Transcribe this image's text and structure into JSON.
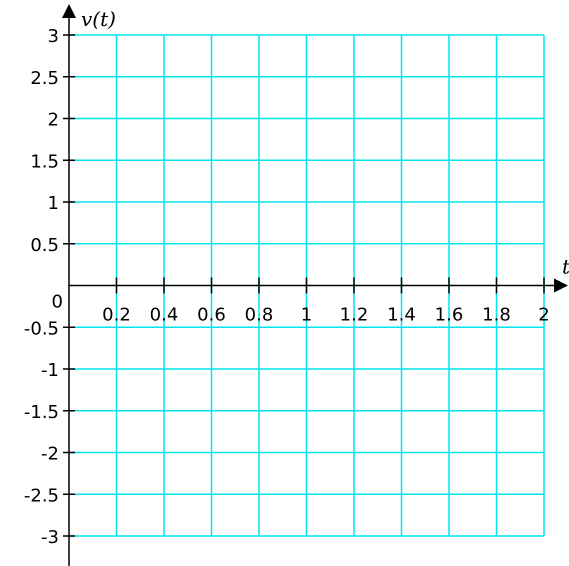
{
  "chart_data": {
    "type": "line",
    "title": "",
    "xlabel": "t",
    "ylabel": "v(t)",
    "xlim": [
      0,
      2
    ],
    "ylim": [
      -3,
      3
    ],
    "grid": true,
    "grid_color": "#00e5ee",
    "axis_color": "#000000",
    "origin_label": "0",
    "x_ticks": [
      {
        "value": 0.2,
        "label": "0.2"
      },
      {
        "value": 0.4,
        "label": "0.4"
      },
      {
        "value": 0.6,
        "label": "0.6"
      },
      {
        "value": 0.8,
        "label": "0.8"
      },
      {
        "value": 1.0,
        "label": "1"
      },
      {
        "value": 1.2,
        "label": "1.2"
      },
      {
        "value": 1.4,
        "label": "1.4"
      },
      {
        "value": 1.6,
        "label": "1.6"
      },
      {
        "value": 1.8,
        "label": "1.8"
      },
      {
        "value": 2.0,
        "label": "2"
      }
    ],
    "y_ticks": [
      {
        "value": 3,
        "label": "3"
      },
      {
        "value": 2.5,
        "label": "2.5"
      },
      {
        "value": 2,
        "label": "2"
      },
      {
        "value": 1.5,
        "label": "1.5"
      },
      {
        "value": 1,
        "label": "1"
      },
      {
        "value": 0.5,
        "label": "0.5"
      },
      {
        "value": -0.5,
        "label": "-0.5"
      },
      {
        "value": -1,
        "label": "-1"
      },
      {
        "value": -1.5,
        "label": "-1.5"
      },
      {
        "value": -2,
        "label": "-2"
      },
      {
        "value": -2.5,
        "label": "-2.5"
      },
      {
        "value": -3,
        "label": "-3"
      }
    ],
    "series": []
  }
}
